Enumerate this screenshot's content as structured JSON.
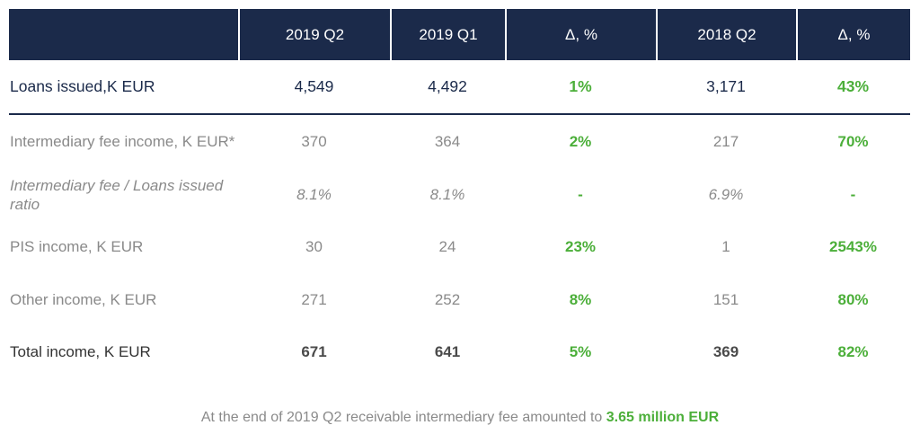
{
  "header": {
    "columns": [
      "",
      "2019 Q2",
      "2019 Q1",
      "Δ, %",
      "2018 Q2",
      "Δ, %"
    ]
  },
  "rows": [
    {
      "label": "Loans issued,K EUR",
      "q2_2019": "4,549",
      "q1_2019": "4,492",
      "delta_q": "1%",
      "q2_2018": "3,171",
      "delta_y": "43%"
    },
    {
      "label": "Intermediary fee income, K EUR*",
      "q2_2019": "370",
      "q1_2019": "364",
      "delta_q": "2%",
      "q2_2018": "217",
      "delta_y": "70%"
    },
    {
      "label_line1": "Intermediary fee / Loans issued",
      "label_line2": "ratio",
      "q2_2019": "8.1%",
      "q1_2019": "8.1%",
      "delta_q": "-",
      "q2_2018": "6.9%",
      "delta_y": "-"
    },
    {
      "label": "PIS income, K EUR",
      "q2_2019": "30",
      "q1_2019": "24",
      "delta_q": "23%",
      "q2_2018": "1",
      "delta_y": "2543%"
    },
    {
      "label": "Other income, K EUR",
      "q2_2019": "271",
      "q1_2019": "252",
      "delta_q": "8%",
      "q2_2018": "151",
      "delta_y": "80%"
    },
    {
      "label": "Total income, K EUR",
      "q2_2019": "671",
      "q1_2019": "641",
      "delta_q": "5%",
      "q2_2018": "369",
      "delta_y": "82%"
    }
  ],
  "footnote": {
    "text": "At the end of 2019 Q2 receivable intermediary fee amounted to ",
    "highlight": "3.65 million EUR"
  },
  "colors": {
    "header_bg": "#1b2a4a",
    "accent_green": "#4caf3a",
    "muted_text": "#8a8a8a"
  }
}
